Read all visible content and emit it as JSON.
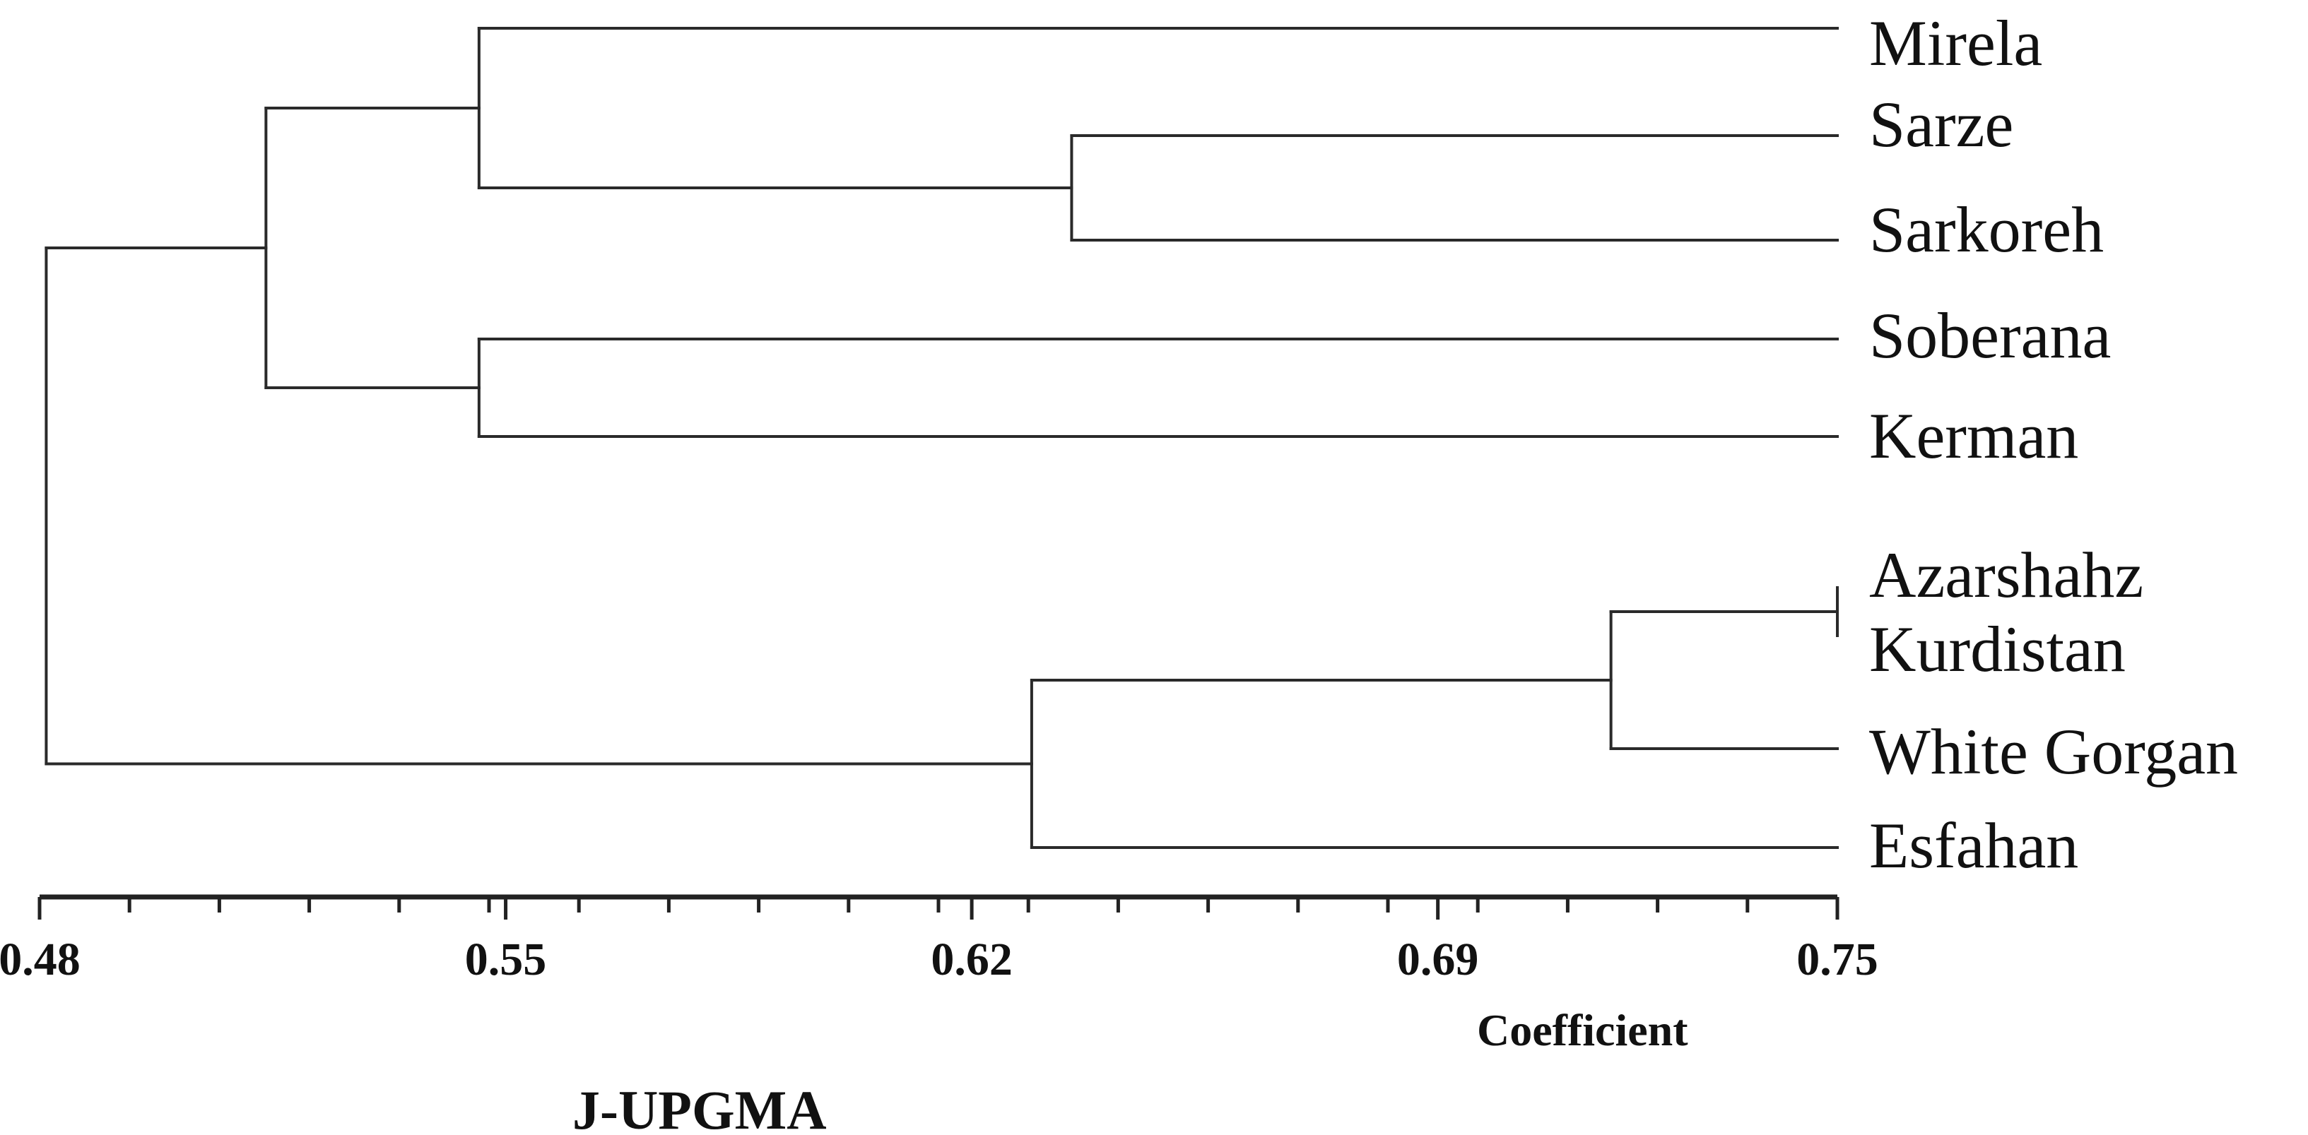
{
  "tree": {
    "leaves": [
      "Mirela",
      "Sarze",
      "Sarkoreh",
      "Soberana",
      "Kerman",
      "Azarshahz",
      "Kurdistan",
      "White Gorgan",
      "Esfahan"
    ],
    "merges": [
      {
        "id": "n1",
        "children": [
          "Sarze",
          "Sarkoreh"
        ],
        "height": 0.635
      },
      {
        "id": "n2",
        "children": [
          "Mirela",
          "n1"
        ],
        "height": 0.546
      },
      {
        "id": "n3",
        "children": [
          "Soberana",
          "Kerman"
        ],
        "height": 0.546
      },
      {
        "id": "n4",
        "children": [
          "n2",
          "n3"
        ],
        "height": 0.514
      },
      {
        "id": "n5",
        "children": [
          "Azarshahz",
          "Kurdistan"
        ],
        "height": 0.75
      },
      {
        "id": "n6",
        "children": [
          "n5",
          "White Gorgan"
        ],
        "height": 0.716
      },
      {
        "id": "n7",
        "children": [
          "n6",
          "Esfahan"
        ],
        "height": 0.629
      },
      {
        "id": "n8",
        "children": [
          "n4",
          "n7"
        ],
        "height": 0.481
      }
    ]
  },
  "axis": {
    "title": "Coefficient",
    "ticks": [
      "0.48",
      "0.55",
      "0.62",
      "0.69",
      "0.75"
    ]
  },
  "method_title": "J-UPGMA"
}
